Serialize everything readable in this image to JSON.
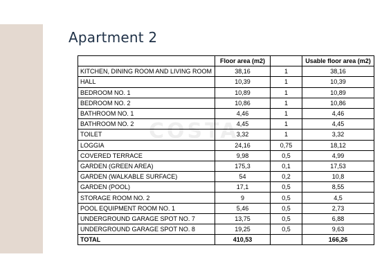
{
  "title": "Apartment 2",
  "watermark": "COSTA",
  "table": {
    "headers": [
      "",
      "Floor area (m2)",
      "",
      "Usable floor area (m2)"
    ],
    "rows": [
      {
        "name": "KITCHEN, DINING ROOM AND LIVING ROOM",
        "floor": "38,16",
        "coef": "1",
        "usable": "38,16"
      },
      {
        "name": "HALL",
        "floor": "10,39",
        "coef": "1",
        "usable": "10,39"
      },
      {
        "name": "BEDROOM NO. 1",
        "floor": "10,89",
        "coef": "1",
        "usable": "10,89"
      },
      {
        "name": "BEDROOM NO. 2",
        "floor": "10,86",
        "coef": "1",
        "usable": "10,86"
      },
      {
        "name": "BATHROOM NO. 1",
        "floor": "4,46",
        "coef": "1",
        "usable": "4,46"
      },
      {
        "name": "BATHROOM NO. 2",
        "floor": "4,45",
        "coef": "1",
        "usable": "4,45"
      },
      {
        "name": "TOILET",
        "floor": "3,32",
        "coef": "1",
        "usable": "3,32"
      },
      {
        "name": "LOGGIA",
        "floor": "24,16",
        "coef": "0,75",
        "usable": "18,12"
      },
      {
        "name": "COVERED TERRACE",
        "floor": "9,98",
        "coef": "0,5",
        "usable": "4,99"
      },
      {
        "name": "GARDEN (GREEN AREA)",
        "floor": "175,3",
        "coef": "0,1",
        "usable": "17,53"
      },
      {
        "name": "GARDEN (WALKABLE SURFACE)",
        "floor": "54",
        "coef": "0,2",
        "usable": "10,8"
      },
      {
        "name": "GARDEN (POOL)",
        "floor": "17,1",
        "coef": "0,5",
        "usable": "8,55"
      },
      {
        "name": "STORAGE ROOM NO. 2",
        "floor": "9",
        "coef": "0,5",
        "usable": "4,5"
      },
      {
        "name": "POOL EQUIPMENT ROOM NO. 1",
        "floor": "5,46",
        "coef": "0,5",
        "usable": "2,73"
      },
      {
        "name": "UNDERGROUND GARAGE SPOT NO. 7",
        "floor": "13,75",
        "coef": "0,5",
        "usable": "6,88"
      },
      {
        "name": "UNDERGROUND GARAGE SPOT NO. 8",
        "floor": "19,25",
        "coef": "0,5",
        "usable": "9,63"
      }
    ],
    "total": {
      "name": "TOTAL",
      "floor": "410,53",
      "coef": "",
      "usable": "166,26"
    }
  }
}
